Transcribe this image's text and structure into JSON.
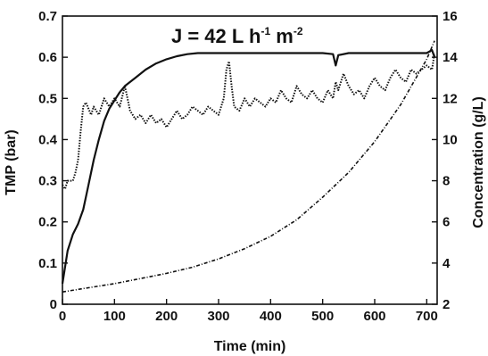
{
  "chart_data": {
    "type": "line",
    "annotation": {
      "main": "J = 42 L h",
      "sup1": "-1",
      "mid": " m",
      "sup2": "-2"
    },
    "xlabel": "Time (min)",
    "ylabel_left": "TMP (bar)",
    "ylabel_right": "Concentration (g/L)",
    "xlim": [
      0,
      720
    ],
    "ylim_left": [
      0,
      0.7
    ],
    "ylim_right": [
      2,
      16
    ],
    "x_ticks": [
      "0",
      "100",
      "200",
      "300",
      "400",
      "500",
      "600",
      "700"
    ],
    "y_ticks_left": [
      "0",
      "0.1",
      "0.2",
      "0.3",
      "0.4",
      "0.5",
      "0.6",
      "0.7"
    ],
    "y_ticks_right": [
      "2",
      "4",
      "6",
      "8",
      "10",
      "12",
      "14",
      "16"
    ],
    "grid": false,
    "series": [
      {
        "axis": "right",
        "style": "solid",
        "x": [
          0,
          10,
          20,
          30,
          40,
          50,
          60,
          70,
          80,
          90,
          100,
          110,
          120,
          140,
          160,
          180,
          200,
          220,
          240,
          260,
          300,
          350,
          400,
          450,
          500,
          520,
          525,
          530,
          550,
          600,
          650,
          700,
          710,
          715
        ],
        "y": [
          3.0,
          4.6,
          5.4,
          5.9,
          6.6,
          7.8,
          9.0,
          10.0,
          10.9,
          11.5,
          11.9,
          12.3,
          12.6,
          13.0,
          13.4,
          13.7,
          13.9,
          14.05,
          14.15,
          14.2,
          14.2,
          14.2,
          14.2,
          14.2,
          14.2,
          14.15,
          13.6,
          14.1,
          14.2,
          14.2,
          14.2,
          14.2,
          14.35,
          14.0
        ]
      },
      {
        "axis": "left",
        "style": "dotted",
        "x": [
          0,
          5,
          10,
          20,
          25,
          30,
          35,
          40,
          45,
          55,
          60,
          70,
          80,
          90,
          100,
          110,
          120,
          130,
          140,
          150,
          160,
          170,
          180,
          190,
          200,
          210,
          220,
          230,
          240,
          250,
          260,
          270,
          280,
          290,
          300,
          310,
          315,
          320,
          325,
          330,
          340,
          350,
          360,
          370,
          380,
          390,
          400,
          410,
          420,
          430,
          440,
          450,
          460,
          470,
          480,
          490,
          500,
          510,
          520,
          525,
          530,
          540,
          550,
          560,
          570,
          580,
          590,
          600,
          610,
          620,
          630,
          640,
          650,
          660,
          670,
          680,
          690,
          700,
          710,
          715
        ],
        "y": [
          0.29,
          0.28,
          0.3,
          0.3,
          0.32,
          0.35,
          0.42,
          0.48,
          0.49,
          0.46,
          0.48,
          0.46,
          0.5,
          0.48,
          0.5,
          0.48,
          0.53,
          0.47,
          0.45,
          0.46,
          0.44,
          0.46,
          0.44,
          0.45,
          0.43,
          0.45,
          0.47,
          0.45,
          0.46,
          0.48,
          0.47,
          0.46,
          0.48,
          0.47,
          0.46,
          0.5,
          0.57,
          0.59,
          0.53,
          0.48,
          0.47,
          0.5,
          0.48,
          0.5,
          0.49,
          0.48,
          0.5,
          0.49,
          0.52,
          0.5,
          0.49,
          0.53,
          0.51,
          0.5,
          0.52,
          0.5,
          0.49,
          0.52,
          0.5,
          0.54,
          0.52,
          0.56,
          0.53,
          0.51,
          0.52,
          0.5,
          0.53,
          0.55,
          0.53,
          0.52,
          0.55,
          0.57,
          0.55,
          0.54,
          0.57,
          0.56,
          0.57,
          0.58,
          0.57,
          0.61
        ]
      },
      {
        "axis": "right",
        "style": "dashdot",
        "x": [
          0,
          50,
          100,
          150,
          200,
          250,
          300,
          350,
          400,
          450,
          500,
          550,
          600,
          650,
          700,
          715
        ],
        "y": [
          2.6,
          2.8,
          3.0,
          3.25,
          3.5,
          3.8,
          4.2,
          4.7,
          5.3,
          6.1,
          7.2,
          8.4,
          9.9,
          11.7,
          13.9,
          14.8
        ]
      }
    ]
  }
}
